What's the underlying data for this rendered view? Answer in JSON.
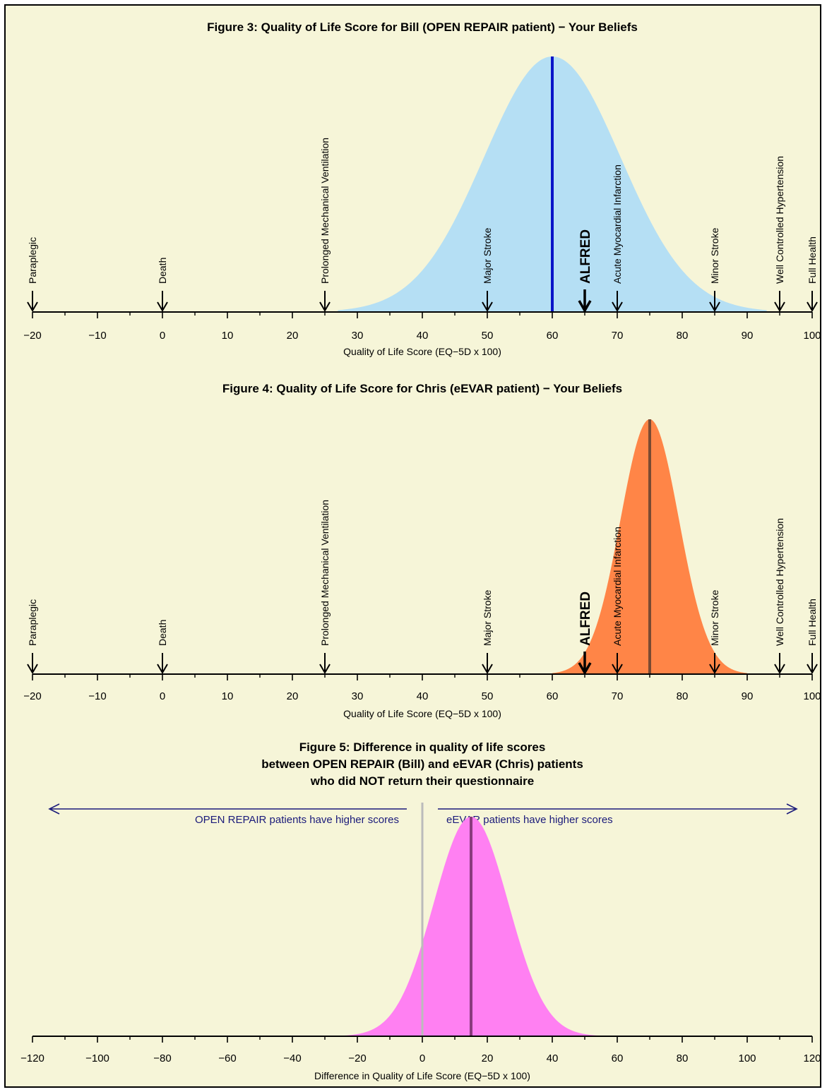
{
  "chart_data": [
    {
      "type": "area",
      "title": "Figure 3: Quality of Life Score for Bill (OPEN REPAIR patient) − Your Beliefs",
      "xlabel": "Quality of Life Score (EQ−5D x 100)",
      "ylabel": "",
      "xlim": [
        -20,
        100
      ],
      "xticks": [
        -20,
        -10,
        0,
        10,
        20,
        30,
        40,
        50,
        60,
        70,
        80,
        90,
        100
      ],
      "xtick_labels": [
        "−20",
        "−10",
        "0",
        "10",
        "20",
        "30",
        "40",
        "50",
        "60",
        "70",
        "80",
        "90",
        "100"
      ],
      "distribution": {
        "shape": "normal",
        "mean": 60,
        "sd": 10.5,
        "min": 27,
        "max": 93
      },
      "mean_line": 60,
      "fill_color": "#b5dff4",
      "line_color": "#0a14c8",
      "markers": [
        {
          "label": "Paraplegic",
          "x": -20
        },
        {
          "label": "Death",
          "x": 0
        },
        {
          "label": "Prolonged Mechanical Ventilation",
          "x": 25
        },
        {
          "label": "Major Stroke",
          "x": 50
        },
        {
          "label": "Acute Myocardial Infarction",
          "x": 70
        },
        {
          "label": "Minor Stroke",
          "x": 85
        },
        {
          "label": "Well Controlled Hypertension",
          "x": 95
        },
        {
          "label": "Full Health",
          "x": 100
        }
      ],
      "highlight_marker": {
        "label": "ALFRED",
        "x": 65
      }
    },
    {
      "type": "area",
      "title": "Figure 4: Quality of Life Score for Chris (eEVAR patient) − Your Beliefs",
      "xlabel": "Quality of Life Score (EQ−5D x 100)",
      "ylabel": "",
      "xlim": [
        -20,
        100
      ],
      "xticks": [
        -20,
        -10,
        0,
        10,
        20,
        30,
        40,
        50,
        60,
        70,
        80,
        90,
        100
      ],
      "xtick_labels": [
        "−20",
        "−10",
        "0",
        "10",
        "20",
        "30",
        "40",
        "50",
        "60",
        "70",
        "80",
        "90",
        "100"
      ],
      "distribution": {
        "shape": "normal",
        "mean": 75,
        "sd": 4.5,
        "min": 60,
        "max": 90
      },
      "mean_line": 75,
      "fill_color": "#ff8547",
      "line_color": "#7a4a32",
      "markers": [
        {
          "label": "Paraplegic",
          "x": -20
        },
        {
          "label": "Death",
          "x": 0
        },
        {
          "label": "Prolonged Mechanical Ventilation",
          "x": 25
        },
        {
          "label": "Major Stroke",
          "x": 50
        },
        {
          "label": "Acute Myocardial Infarction",
          "x": 70
        },
        {
          "label": "Minor Stroke",
          "x": 85
        },
        {
          "label": "Well Controlled Hypertension",
          "x": 95
        },
        {
          "label": "Full Health",
          "x": 100
        }
      ],
      "highlight_marker": {
        "label": "ALFRED",
        "x": 65
      }
    },
    {
      "type": "area",
      "title_lines": [
        "Figure 5: Difference in quality of life scores",
        "between OPEN REPAIR (Bill) and eEVAR (Chris) patients",
        "who did NOT return their questionnaire"
      ],
      "xlabel": "Difference in Quality of Life Score (EQ−5D x 100)",
      "ylabel": "",
      "xlim": [
        -120,
        120
      ],
      "xticks": [
        -120,
        -100,
        -80,
        -60,
        -40,
        -20,
        0,
        20,
        40,
        60,
        80,
        100,
        120
      ],
      "xtick_labels": [
        "−120",
        "−100",
        "−80",
        "−60",
        "−40",
        "−20",
        "0",
        "20",
        "40",
        "60",
        "80",
        "100",
        "120"
      ],
      "minor_ticks": [
        -110,
        -90,
        -70,
        -50,
        -30,
        -10,
        10,
        30,
        50,
        70,
        90,
        110
      ],
      "distribution": {
        "shape": "normal",
        "mean": 15,
        "sd": 11.5,
        "min": -25,
        "max": 55
      },
      "mean_line": 15,
      "zero_line": 0,
      "fill_color": "#ff80f2",
      "line_color": "#8a3a7e",
      "zero_line_color": "#bbbbbb",
      "arrow_color": "#1a1a7a",
      "left_arrow_text": "OPEN REPAIR patients have higher scores",
      "right_arrow_text": "eEVAR patients have higher scores"
    }
  ]
}
